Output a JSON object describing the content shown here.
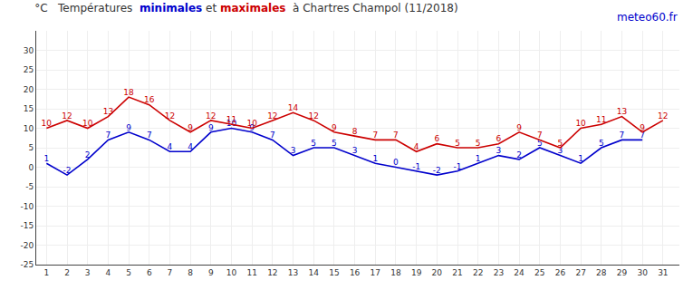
{
  "chart_data": {
    "type": "line",
    "title": "°C   Températures  minimales et maximales  à Chartres Champol (11/2018)",
    "x": [
      1,
      2,
      3,
      4,
      5,
      6,
      7,
      8,
      9,
      10,
      11,
      12,
      13,
      14,
      15,
      16,
      17,
      18,
      19,
      20,
      21,
      22,
      23,
      24,
      25,
      26,
      27,
      28,
      29,
      30,
      31
    ],
    "series": [
      {
        "name": "minimales",
        "color": "#0000cc",
        "values": [
          1,
          -2,
          2,
          7,
          9,
          7,
          4,
          4,
          9,
          10,
          9,
          7,
          3,
          5,
          5,
          3,
          1,
          0,
          -1,
          -2,
          -1,
          1,
          3,
          2,
          5,
          3,
          1,
          5,
          7,
          7,
          null
        ]
      },
      {
        "name": "maximales",
        "color": "#cc0000",
        "values": [
          10,
          12,
          10,
          13,
          18,
          16,
          12,
          9,
          12,
          11,
          10,
          12,
          14,
          12,
          9,
          8,
          7,
          7,
          4,
          6,
          5,
          5,
          6,
          9,
          7,
          5,
          10,
          11,
          13,
          9,
          12
        ]
      }
    ],
    "xlim": [
      0.5,
      31.8
    ],
    "xticks": [
      1,
      2,
      3,
      4,
      5,
      6,
      7,
      8,
      9,
      10,
      11,
      12,
      13,
      14,
      15,
      16,
      17,
      18,
      19,
      20,
      21,
      22,
      23,
      24,
      25,
      26,
      27,
      28,
      29,
      30,
      31
    ],
    "ylim": [
      -25,
      35
    ],
    "yticks": [
      -25,
      -20,
      -15,
      -10,
      -5,
      0,
      5,
      10,
      15,
      20,
      25,
      30
    ],
    "grid": true,
    "data_labels": true,
    "annotations": [
      {
        "text": "meteo60.fr",
        "color": "#0000cc"
      }
    ]
  }
}
